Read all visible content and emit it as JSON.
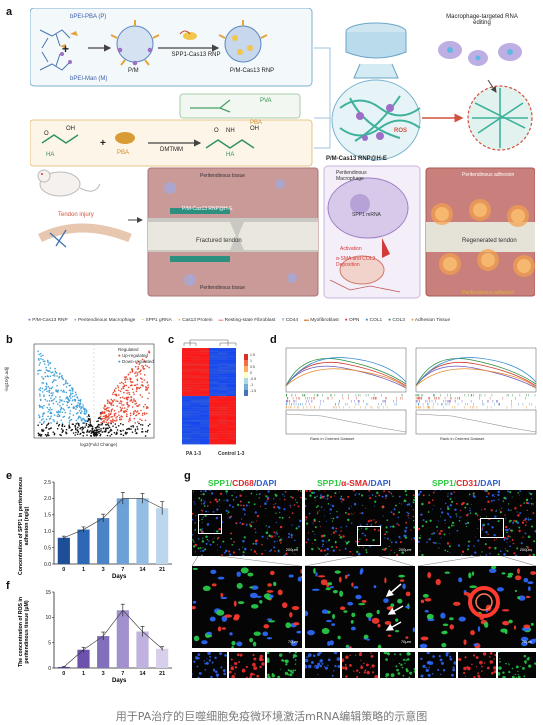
{
  "panel_letters": {
    "a": "a",
    "b": "b",
    "c": "c",
    "d": "d",
    "e": "e",
    "f": "f",
    "g": "g"
  },
  "panel_a": {
    "top_left": {
      "polymer1": "bPEI-PBA (P)",
      "polymer2": "bPEI-Man (M)",
      "pm": "P/M",
      "rnp": "SPP1-Cas13 RNP",
      "pm_rnp": "P/M-Cas13 RNP",
      "pva": "PVA"
    },
    "reaction": {
      "reactant1": "HA",
      "plus": "+",
      "reactant2": "PBA",
      "reagent": "DMTMM",
      "product_label1": "PBA",
      "product_label2": "HA"
    },
    "gel_label": "P/M-Cas13 RNP@H-E",
    "macrophage_title": "Macrophage-targeted RNA editing",
    "ros_label": "ROS",
    "scene": {
      "tendon_injury": "Tendon injury",
      "peritendinous_tissue_top": "Peritendinous tissue",
      "fractured_tendon": "Fractured tendon",
      "peritendinous_tissue_bottom": "Peritendinous tissue",
      "gel_tag": "P/M-Cas13 RNP@H-E",
      "macrophage": "Peritendinous Macrophage",
      "spp1": "SPP1 mRNA",
      "activation": "Activation",
      "ecm": "α-SMA and COL3 Deposition",
      "adhesion_top": "Peritendinous adhesion",
      "regenerated": "Regenerated tendon",
      "adhesion_bottom": "Peritendinous adhesion"
    },
    "legend": [
      "P/M-Cas13 RNP",
      "Peritendinous Macrophage",
      "SPP1 gRNA",
      "Cas13 Protein",
      "Resting-state Fibroblast",
      "CD44",
      "Myofibroblast",
      "OPN",
      "COL1",
      "COL3",
      "Adhesion Tissue"
    ]
  },
  "panel_b": {
    "legend_title": "Regulated",
    "up": "Up-regulated",
    "down": "Down-regulated",
    "xlabel": "log2(Fold Change)",
    "ylabel": "-log10(p.adj)"
  },
  "panel_c": {
    "group1": "PA 1-3",
    "group2": "Control 1-3",
    "scale": [
      "1.5",
      "1",
      "0.5",
      "0",
      "-0.5",
      "-1",
      "-1.5"
    ]
  },
  "panel_d": {
    "xlabel": "Rank in Ordered Dataset"
  },
  "panel_e": {
    "ylabel": "Concentration of SPP1 in peritendinous adhesion (ng/g)",
    "xlabel": "Days",
    "colors": {
      "bars": [
        "#1f4e99",
        "#2e67b4",
        "#4a84c7",
        "#6ba1d6",
        "#93bde3",
        "#bcd6ee"
      ]
    },
    "chart_data": {
      "type": "bar",
      "categories": [
        "0",
        "1",
        "3",
        "7",
        "14",
        "21"
      ],
      "values": [
        0.8,
        1.05,
        1.4,
        2.0,
        2.0,
        1.7
      ],
      "errors": [
        0.05,
        0.08,
        0.12,
        0.18,
        0.15,
        0.2
      ],
      "ylim": [
        0,
        2.5
      ],
      "yticks": [
        "0.0",
        "0.5",
        "1.0",
        "1.5",
        "2.0",
        "2.5"
      ]
    }
  },
  "panel_f": {
    "ylabel": "The concentration of ROS in peritendinous tissue (μM)",
    "xlabel": "Days",
    "colors": {
      "bars": [
        "#5b3f9e",
        "#6d52ad",
        "#8370bd",
        "#a391cf",
        "#bfb2df",
        "#d7cfec"
      ]
    },
    "chart_data": {
      "type": "bar",
      "categories": [
        "0",
        "1",
        "3",
        "7",
        "14",
        "21"
      ],
      "values": [
        0.2,
        3.6,
        6.3,
        11.4,
        7.2,
        3.8
      ],
      "errors": [
        0.1,
        0.5,
        0.8,
        1.2,
        1.0,
        0.4
      ],
      "ylim": [
        0,
        15
      ],
      "yticks": [
        "0",
        "5",
        "10",
        "15"
      ]
    }
  },
  "panel_g": {
    "titles": [
      {
        "a": "SPP1",
        "b": "CD68",
        "c": "DAPI"
      },
      {
        "a": "SPP1",
        "b": "α-SMA",
        "c": "DAPI"
      },
      {
        "a": "SPP1",
        "b": "CD31",
        "c": "DAPI"
      }
    ],
    "scale_top": "200μm",
    "scale_mid": "70μm"
  },
  "caption": "用于PA治疗的巨噬细胞免疫微环境激活mRNA编辑策略的示意图"
}
